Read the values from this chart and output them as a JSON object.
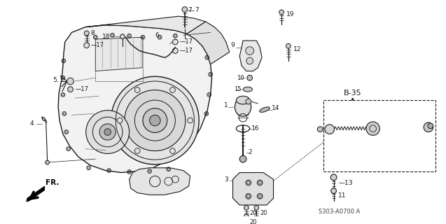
{
  "bg_color": "#ffffff",
  "line_color": "#1a1a1a",
  "diagram_code": "S303-A0700 A",
  "fr_label": "FR.",
  "b35_label": "B-35"
}
